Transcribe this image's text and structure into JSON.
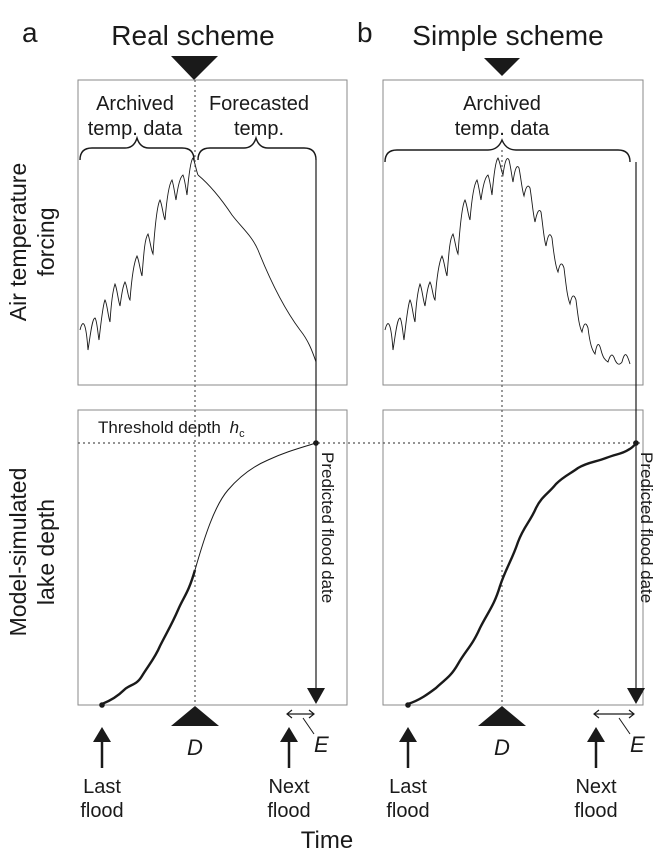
{
  "panel_a": {
    "letter": "a",
    "title": "Real scheme",
    "archived_label_line1": "Archived",
    "archived_label_line2": "temp. data",
    "forecast_label_line1": "Forecasted",
    "forecast_label_line2": "temp.",
    "threshold_label": "Threshold depth",
    "threshold_symbol": "h",
    "threshold_subscript": "c",
    "predicted_label": "Predicted flood date",
    "d_label": "D",
    "e_label": "E",
    "last_flood_line1": "Last",
    "last_flood_line2": "flood",
    "next_flood_line1": "Next",
    "next_flood_line2": "flood"
  },
  "panel_b": {
    "letter": "b",
    "title": "Simple scheme",
    "archived_label_line1": "Archived",
    "archived_label_line2": "temp. data",
    "predicted_label": "Predicted flood date",
    "d_label": "D",
    "e_label": "E",
    "last_flood_line1": "Last",
    "last_flood_line2": "flood",
    "next_flood_line1": "Next",
    "next_flood_line2": "flood"
  },
  "axes": {
    "y_top_line1": "Air temperature",
    "y_top_line2": "forcing",
    "y_bottom_line1": "Model-simulated",
    "y_bottom_line2": "lake depth",
    "x_label": "Time"
  },
  "colors": {
    "ink": "#1a1a1a",
    "frame": "#8a8a8a",
    "dotted": "#555555"
  }
}
